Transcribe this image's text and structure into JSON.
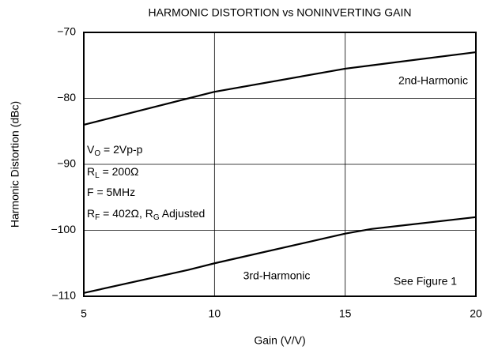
{
  "chart_data": {
    "type": "line",
    "title": "HARMONIC DISTORTION vs NONINVERTING GAIN",
    "x_label": "Gain (V/V)",
    "y_label": "Harmonic Distortion (dBc)",
    "x": [
      5,
      9,
      10,
      15,
      16,
      20
    ],
    "series": [
      {
        "name": "2nd-Harmonic",
        "color": "#000000",
        "values": [
          -84,
          -80,
          -79,
          -75.5,
          -75,
          -73
        ]
      },
      {
        "name": "3rd-Harmonic",
        "color": "#000000",
        "values": [
          -109.5,
          -106,
          -105,
          -100.5,
          -99.8,
          -98
        ]
      }
    ],
    "xlim": [
      5,
      20
    ],
    "xticks": [
      5,
      10,
      15,
      20
    ],
    "ylim": [
      -110,
      -70
    ],
    "yticks": [
      {
        "value": -110,
        "label": "−110"
      },
      {
        "value": -100,
        "label": "−100"
      },
      {
        "value": -90,
        "label": "−90"
      },
      {
        "value": -80,
        "label": "−80"
      },
      {
        "value": -70,
        "label": "−70"
      }
    ],
    "grid": true,
    "annotations": [
      [
        "V",
        "O",
        " = 2Vp-p"
      ],
      [
        "R",
        "L",
        " = 200Ω"
      ],
      [
        "F = 5MHz"
      ],
      [
        "R",
        "F",
        " = 402Ω, R",
        "G",
        " Adjusted"
      ]
    ],
    "note": "See Figure 1"
  }
}
